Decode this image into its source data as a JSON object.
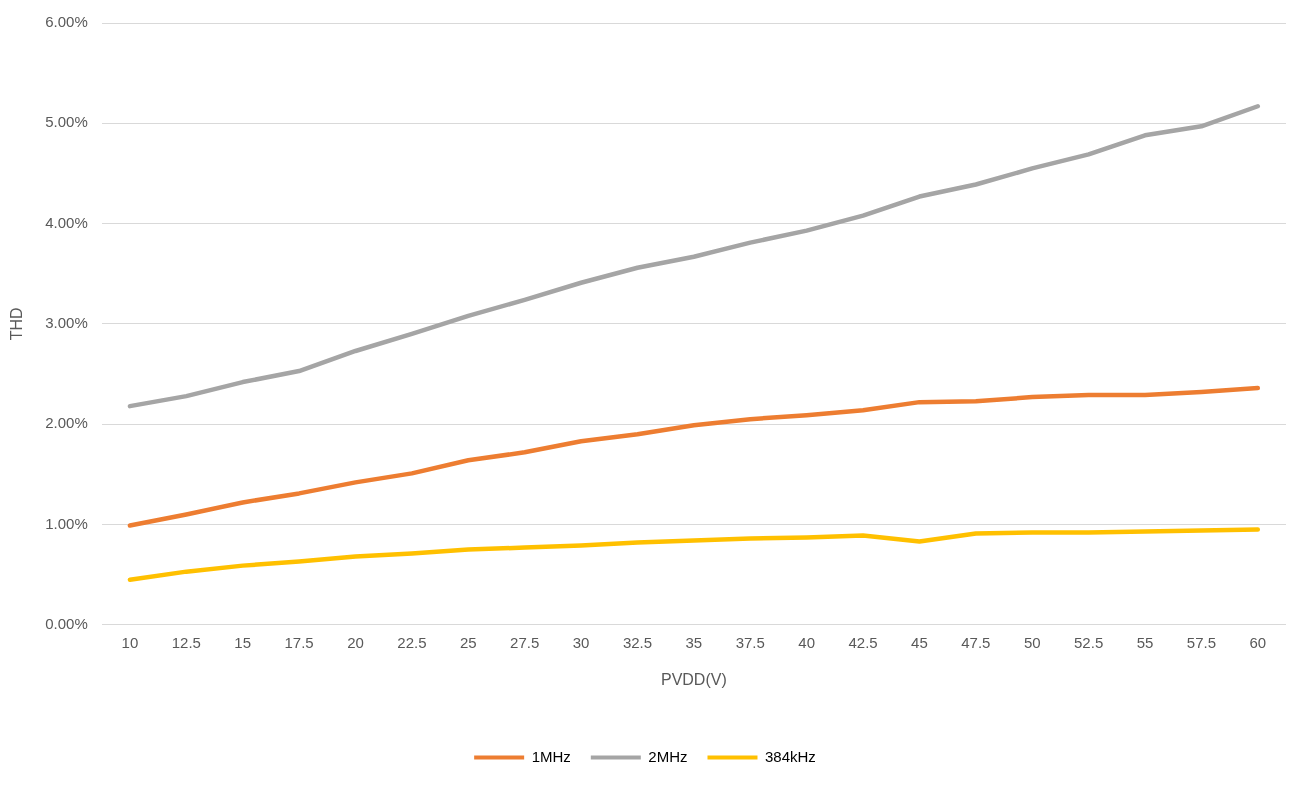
{
  "chart_data": {
    "type": "line",
    "xlabel": "PVDD(V)",
    "ylabel": "THD",
    "categories": [
      "10",
      "12.5",
      "15",
      "17.5",
      "20",
      "22.5",
      "25",
      "27.5",
      "30",
      "32.5",
      "35",
      "37.5",
      "40",
      "42.5",
      "45",
      "47.5",
      "50",
      "52.5",
      "55",
      "57.5",
      "60"
    ],
    "series": [
      {
        "name": "1MHz",
        "color": "#ed7d31",
        "values": [
          0.99,
          1.1,
          1.22,
          1.31,
          1.42,
          1.51,
          1.64,
          1.72,
          1.83,
          1.9,
          1.99,
          2.05,
          2.09,
          2.14,
          2.22,
          2.23,
          2.27,
          2.29,
          2.29,
          2.32,
          2.36
        ]
      },
      {
        "name": "2MHz",
        "color": "#a5a5a5",
        "values": [
          2.18,
          2.28,
          2.42,
          2.53,
          2.73,
          2.9,
          3.08,
          3.24,
          3.41,
          3.56,
          3.67,
          3.81,
          3.93,
          4.08,
          4.27,
          4.39,
          4.55,
          4.69,
          4.88,
          4.97,
          5.17
        ]
      },
      {
        "name": "384kHz",
        "color": "#ffc000",
        "values": [
          0.45,
          0.53,
          0.59,
          0.63,
          0.68,
          0.71,
          0.75,
          0.77,
          0.79,
          0.82,
          0.84,
          0.86,
          0.87,
          0.89,
          0.83,
          0.91,
          0.92,
          0.92,
          0.93,
          0.94,
          0.95
        ]
      }
    ],
    "ylim": [
      0,
      6
    ],
    "yticks": [
      {
        "value": 0,
        "label": "0.00%"
      },
      {
        "value": 1,
        "label": "1.00%"
      },
      {
        "value": 2,
        "label": "2.00%"
      },
      {
        "value": 3,
        "label": "3.00%"
      },
      {
        "value": 4,
        "label": "4.00%"
      },
      {
        "value": 5,
        "label": "5.00%"
      },
      {
        "value": 6,
        "label": "6.00%"
      }
    ],
    "grid": "y",
    "legend": "bottom",
    "marker": "none",
    "line_style": "solid"
  }
}
